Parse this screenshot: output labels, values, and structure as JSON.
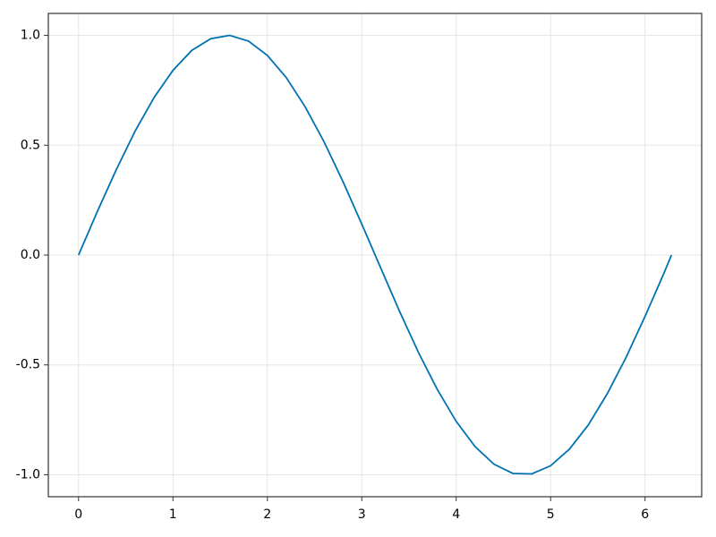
{
  "chart_data": {
    "type": "line",
    "x": [
      0,
      0.2,
      0.4,
      0.6,
      0.8,
      1.0,
      1.2,
      1.4,
      1.6,
      1.8,
      2.0,
      2.2,
      2.4,
      2.6,
      2.8,
      3.0,
      3.2,
      3.4,
      3.6,
      3.8,
      4.0,
      4.2,
      4.4,
      4.6,
      4.8,
      5.0,
      5.2,
      5.4,
      5.6,
      5.8,
      6.0,
      6.2,
      6.28
    ],
    "series": [
      {
        "color": "#0072b2",
        "values": [
          0,
          0.199,
          0.389,
          0.565,
          0.717,
          0.841,
          0.932,
          0.985,
          1.0,
          0.974,
          0.909,
          0.808,
          0.675,
          0.516,
          0.335,
          0.141,
          -0.058,
          -0.256,
          -0.443,
          -0.612,
          -0.757,
          -0.872,
          -0.952,
          -0.994,
          -0.996,
          -0.959,
          -0.883,
          -0.773,
          -0.631,
          -0.465,
          -0.279,
          -0.083,
          0
        ]
      }
    ],
    "xlim": [
      -0.32,
      6.6
    ],
    "ylim": [
      -1.1,
      1.1
    ],
    "xticks": [
      0,
      1,
      2,
      3,
      4,
      5,
      6
    ],
    "yticks": [
      {
        "value": -1,
        "label": "-1.0"
      },
      -0.5,
      {
        "value": 0,
        "label": "0.0"
      },
      0.5,
      {
        "value": 1,
        "label": "1.0"
      }
    ],
    "grid": true
  }
}
